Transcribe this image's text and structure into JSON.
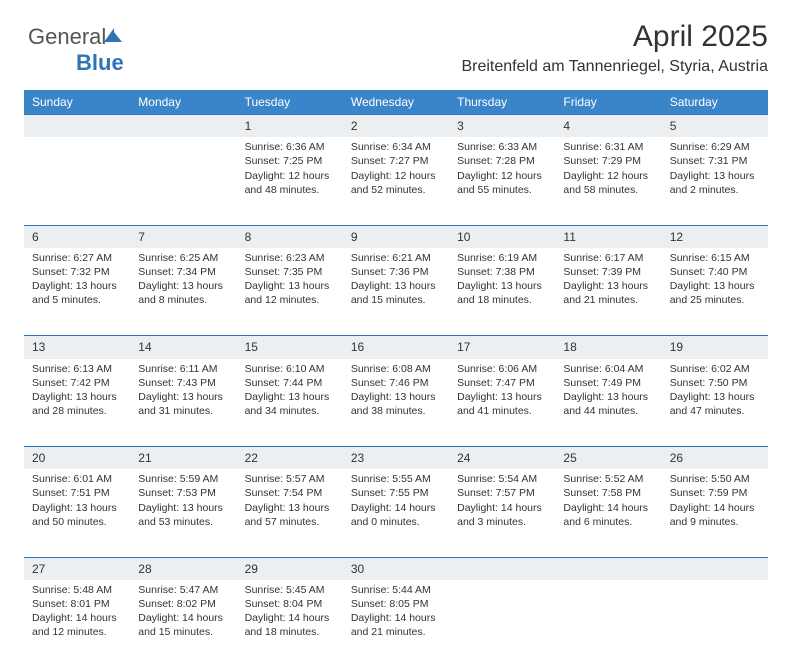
{
  "brand": {
    "part1": "General",
    "part2": "Blue"
  },
  "header": {
    "title": "April 2025",
    "subtitle": "Breitenfeld am Tannenriegel, Styria, Austria"
  },
  "colors": {
    "header_bg": "#3a85c9",
    "header_text": "#ffffff",
    "daynum_bg": "#eceff1",
    "daynum_border": "#2f74b5",
    "body_text": "#333333",
    "page_bg": "#ffffff",
    "brand_blue": "#2f74b5",
    "brand_gray": "#555555"
  },
  "typography": {
    "title_fontsize": 30,
    "subtitle_fontsize": 16,
    "dayheader_fontsize": 12,
    "daynum_fontsize": 12,
    "cell_fontsize": 10.5
  },
  "calendar": {
    "day_headers": [
      "Sunday",
      "Monday",
      "Tuesday",
      "Wednesday",
      "Thursday",
      "Friday",
      "Saturday"
    ],
    "weeks": [
      [
        null,
        null,
        {
          "n": "1",
          "sr": "Sunrise: 6:36 AM",
          "ss": "Sunset: 7:25 PM",
          "dl": "Daylight: 12 hours and 48 minutes."
        },
        {
          "n": "2",
          "sr": "Sunrise: 6:34 AM",
          "ss": "Sunset: 7:27 PM",
          "dl": "Daylight: 12 hours and 52 minutes."
        },
        {
          "n": "3",
          "sr": "Sunrise: 6:33 AM",
          "ss": "Sunset: 7:28 PM",
          "dl": "Daylight: 12 hours and 55 minutes."
        },
        {
          "n": "4",
          "sr": "Sunrise: 6:31 AM",
          "ss": "Sunset: 7:29 PM",
          "dl": "Daylight: 12 hours and 58 minutes."
        },
        {
          "n": "5",
          "sr": "Sunrise: 6:29 AM",
          "ss": "Sunset: 7:31 PM",
          "dl": "Daylight: 13 hours and 2 minutes."
        }
      ],
      [
        {
          "n": "6",
          "sr": "Sunrise: 6:27 AM",
          "ss": "Sunset: 7:32 PM",
          "dl": "Daylight: 13 hours and 5 minutes."
        },
        {
          "n": "7",
          "sr": "Sunrise: 6:25 AM",
          "ss": "Sunset: 7:34 PM",
          "dl": "Daylight: 13 hours and 8 minutes."
        },
        {
          "n": "8",
          "sr": "Sunrise: 6:23 AM",
          "ss": "Sunset: 7:35 PM",
          "dl": "Daylight: 13 hours and 12 minutes."
        },
        {
          "n": "9",
          "sr": "Sunrise: 6:21 AM",
          "ss": "Sunset: 7:36 PM",
          "dl": "Daylight: 13 hours and 15 minutes."
        },
        {
          "n": "10",
          "sr": "Sunrise: 6:19 AM",
          "ss": "Sunset: 7:38 PM",
          "dl": "Daylight: 13 hours and 18 minutes."
        },
        {
          "n": "11",
          "sr": "Sunrise: 6:17 AM",
          "ss": "Sunset: 7:39 PM",
          "dl": "Daylight: 13 hours and 21 minutes."
        },
        {
          "n": "12",
          "sr": "Sunrise: 6:15 AM",
          "ss": "Sunset: 7:40 PM",
          "dl": "Daylight: 13 hours and 25 minutes."
        }
      ],
      [
        {
          "n": "13",
          "sr": "Sunrise: 6:13 AM",
          "ss": "Sunset: 7:42 PM",
          "dl": "Daylight: 13 hours and 28 minutes."
        },
        {
          "n": "14",
          "sr": "Sunrise: 6:11 AM",
          "ss": "Sunset: 7:43 PM",
          "dl": "Daylight: 13 hours and 31 minutes."
        },
        {
          "n": "15",
          "sr": "Sunrise: 6:10 AM",
          "ss": "Sunset: 7:44 PM",
          "dl": "Daylight: 13 hours and 34 minutes."
        },
        {
          "n": "16",
          "sr": "Sunrise: 6:08 AM",
          "ss": "Sunset: 7:46 PM",
          "dl": "Daylight: 13 hours and 38 minutes."
        },
        {
          "n": "17",
          "sr": "Sunrise: 6:06 AM",
          "ss": "Sunset: 7:47 PM",
          "dl": "Daylight: 13 hours and 41 minutes."
        },
        {
          "n": "18",
          "sr": "Sunrise: 6:04 AM",
          "ss": "Sunset: 7:49 PM",
          "dl": "Daylight: 13 hours and 44 minutes."
        },
        {
          "n": "19",
          "sr": "Sunrise: 6:02 AM",
          "ss": "Sunset: 7:50 PM",
          "dl": "Daylight: 13 hours and 47 minutes."
        }
      ],
      [
        {
          "n": "20",
          "sr": "Sunrise: 6:01 AM",
          "ss": "Sunset: 7:51 PM",
          "dl": "Daylight: 13 hours and 50 minutes."
        },
        {
          "n": "21",
          "sr": "Sunrise: 5:59 AM",
          "ss": "Sunset: 7:53 PM",
          "dl": "Daylight: 13 hours and 53 minutes."
        },
        {
          "n": "22",
          "sr": "Sunrise: 5:57 AM",
          "ss": "Sunset: 7:54 PM",
          "dl": "Daylight: 13 hours and 57 minutes."
        },
        {
          "n": "23",
          "sr": "Sunrise: 5:55 AM",
          "ss": "Sunset: 7:55 PM",
          "dl": "Daylight: 14 hours and 0 minutes."
        },
        {
          "n": "24",
          "sr": "Sunrise: 5:54 AM",
          "ss": "Sunset: 7:57 PM",
          "dl": "Daylight: 14 hours and 3 minutes."
        },
        {
          "n": "25",
          "sr": "Sunrise: 5:52 AM",
          "ss": "Sunset: 7:58 PM",
          "dl": "Daylight: 14 hours and 6 minutes."
        },
        {
          "n": "26",
          "sr": "Sunrise: 5:50 AM",
          "ss": "Sunset: 7:59 PM",
          "dl": "Daylight: 14 hours and 9 minutes."
        }
      ],
      [
        {
          "n": "27",
          "sr": "Sunrise: 5:48 AM",
          "ss": "Sunset: 8:01 PM",
          "dl": "Daylight: 14 hours and 12 minutes."
        },
        {
          "n": "28",
          "sr": "Sunrise: 5:47 AM",
          "ss": "Sunset: 8:02 PM",
          "dl": "Daylight: 14 hours and 15 minutes."
        },
        {
          "n": "29",
          "sr": "Sunrise: 5:45 AM",
          "ss": "Sunset: 8:04 PM",
          "dl": "Daylight: 14 hours and 18 minutes."
        },
        {
          "n": "30",
          "sr": "Sunrise: 5:44 AM",
          "ss": "Sunset: 8:05 PM",
          "dl": "Daylight: 14 hours and 21 minutes."
        },
        null,
        null,
        null
      ]
    ]
  }
}
